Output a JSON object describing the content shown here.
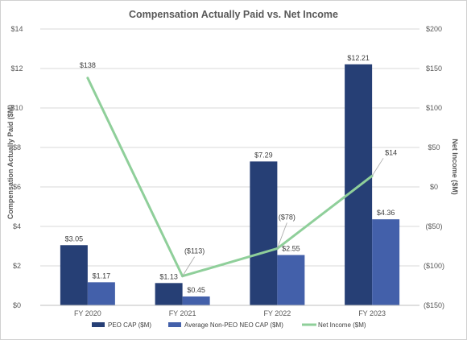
{
  "chart_data": {
    "type": "bar",
    "title": "Compensation Actually Paid vs. Net Income",
    "categories": [
      "FY 2020",
      "FY 2021",
      "FY 2022",
      "FY 2023"
    ],
    "ylabel": "Compensation Actually Paid ($M)",
    "y2label": "Net Income ($M)",
    "ylim": [
      0,
      14
    ],
    "y2lim": [
      -150,
      200
    ],
    "y_ticks": [
      "$0",
      "$2",
      "$4",
      "$6",
      "$8",
      "$10",
      "$12",
      "$14"
    ],
    "y_tick_values": [
      0,
      2,
      4,
      6,
      8,
      10,
      12,
      14
    ],
    "y2_ticks": [
      "($150)",
      "($100)",
      "($50)",
      "$0",
      "$50",
      "$100",
      "$150",
      "$200"
    ],
    "y2_tick_values": [
      -150,
      -100,
      -50,
      0,
      50,
      100,
      150,
      200
    ],
    "grid": true,
    "legend_position": "bottom",
    "series": [
      {
        "name": "PEO CAP ($M)",
        "kind": "bar",
        "axis": "left",
        "color": "#263f75",
        "values": [
          3.05,
          1.13,
          7.29,
          12.21
        ],
        "labels": [
          "$3.05",
          "$1.13",
          "$7.29",
          "$12.21"
        ]
      },
      {
        "name": "Average Non-PEO NEO CAP ($M)",
        "kind": "bar",
        "axis": "left",
        "color": "#4360aa",
        "values": [
          1.17,
          0.45,
          2.55,
          4.36
        ],
        "labels": [
          "$1.17",
          "$0.45",
          "$2.55",
          "$4.36"
        ]
      },
      {
        "name": "Net Income ($M)",
        "kind": "line",
        "axis": "right",
        "color": "#8fcf9a",
        "values": [
          138,
          -113,
          -78,
          14
        ],
        "labels": [
          "$138",
          "($113)",
          "($78)",
          "$14"
        ]
      }
    ]
  }
}
